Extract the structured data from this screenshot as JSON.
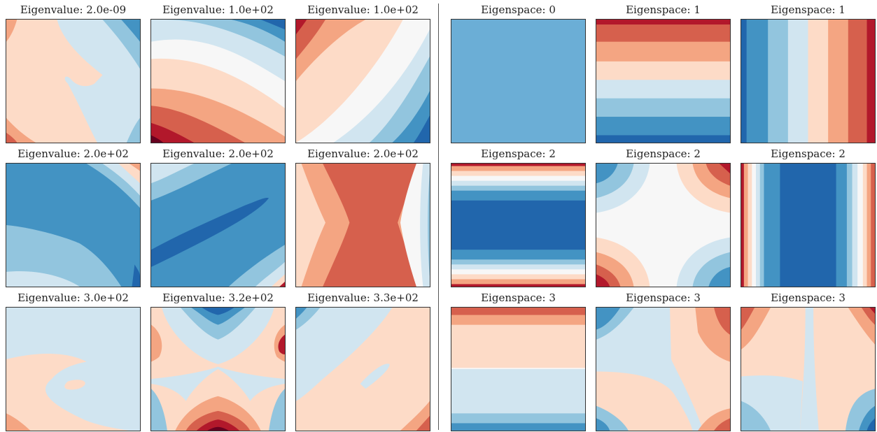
{
  "colors": {
    "c0": "#67001f",
    "c1": "#b2182b",
    "c2": "#d6604d",
    "c3": "#f4a582",
    "c4": "#fddbc7",
    "c5": "#f7f7f7",
    "c6": "#d1e5f0",
    "c7": "#92c5de",
    "c8": "#4393c3",
    "c9": "#2166ac",
    "c10": "#053061"
  },
  "left_group": {
    "panels": [
      {
        "title": "Eigenvalue: 2.0e-09"
      },
      {
        "title": "Eigenvalue: 1.0e+02"
      },
      {
        "title": "Eigenvalue: 1.0e+02"
      },
      {
        "title": "Eigenvalue: 2.0e+02"
      },
      {
        "title": "Eigenvalue: 2.0e+02"
      },
      {
        "title": "Eigenvalue: 2.0e+02"
      },
      {
        "title": "Eigenvalue: 3.0e+02"
      },
      {
        "title": "Eigenvalue: 3.2e+02"
      },
      {
        "title": "Eigenvalue: 3.3e+02"
      }
    ]
  },
  "right_group": {
    "panels": [
      {
        "title": "Eigenspace: 0"
      },
      {
        "title": "Eigenspace: 1"
      },
      {
        "title": "Eigenspace: 1"
      },
      {
        "title": "Eigenspace: 2"
      },
      {
        "title": "Eigenspace: 2"
      },
      {
        "title": "Eigenspace: 2"
      },
      {
        "title": "Eigenspace: 3"
      },
      {
        "title": "Eigenspace: 3"
      },
      {
        "title": "Eigenspace: 3"
      }
    ]
  }
}
